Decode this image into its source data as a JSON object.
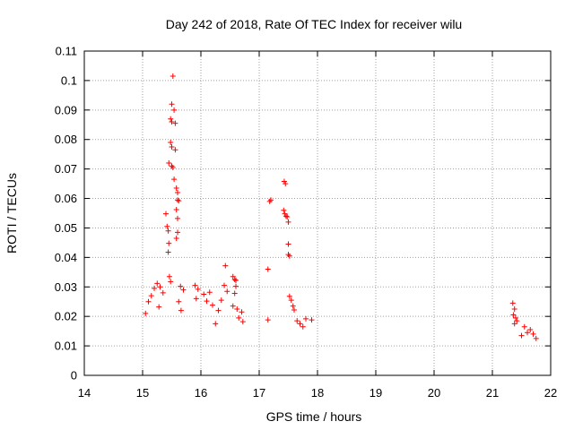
{
  "chart_data": {
    "type": "scatter",
    "title": "Day 242 of 2018, Rate Of TEC Index for receiver wilu",
    "xlabel": "GPS time / hours",
    "ylabel": "ROTI / TECUs",
    "xlim": [
      14,
      22
    ],
    "ylim": [
      0,
      0.11
    ],
    "grid": true,
    "marker": "+",
    "color": "#ff0000",
    "x_ticks": [
      {
        "value": 14,
        "label": "14"
      },
      {
        "value": 15,
        "label": "15"
      },
      {
        "value": 16,
        "label": "16"
      },
      {
        "value": 17,
        "label": "17"
      },
      {
        "value": 18,
        "label": "18"
      },
      {
        "value": 19,
        "label": "19"
      },
      {
        "value": 20,
        "label": "20"
      },
      {
        "value": 21,
        "label": "21"
      },
      {
        "value": 22,
        "label": "22"
      }
    ],
    "y_ticks": [
      {
        "value": 0,
        "label": "0"
      },
      {
        "value": 0.01,
        "label": "0.01"
      },
      {
        "value": 0.02,
        "label": "0.02"
      },
      {
        "value": 0.03,
        "label": "0.03"
      },
      {
        "value": 0.04,
        "label": "0.04"
      },
      {
        "value": 0.05,
        "label": "0.05"
      },
      {
        "value": 0.06,
        "label": "0.06"
      },
      {
        "value": 0.07,
        "label": "0.07"
      },
      {
        "value": 0.08,
        "label": "0.08"
      },
      {
        "value": 0.09,
        "label": "0.09"
      },
      {
        "value": 0.1,
        "label": "0.1"
      },
      {
        "value": 0.11,
        "label": "0.11"
      }
    ],
    "series": [
      {
        "name": "ROTI",
        "points": [
          [
            15.52,
            0.1015
          ],
          [
            15.5,
            0.092
          ],
          [
            15.54,
            0.09
          ],
          [
            15.48,
            0.087
          ],
          [
            15.5,
            0.086
          ],
          [
            15.56,
            0.0855
          ],
          [
            15.48,
            0.079
          ],
          [
            15.5,
            0.0775
          ],
          [
            15.56,
            0.0765
          ],
          [
            15.45,
            0.072
          ],
          [
            15.5,
            0.071
          ],
          [
            15.52,
            0.0705
          ],
          [
            15.54,
            0.0665
          ],
          [
            15.58,
            0.0635
          ],
          [
            15.6,
            0.062
          ],
          [
            15.6,
            0.0595
          ],
          [
            15.62,
            0.0592
          ],
          [
            15.4,
            0.0548
          ],
          [
            15.58,
            0.0562
          ],
          [
            15.6,
            0.0532
          ],
          [
            15.42,
            0.0505
          ],
          [
            15.44,
            0.049
          ],
          [
            15.6,
            0.0485
          ],
          [
            15.58,
            0.0465
          ],
          [
            15.45,
            0.0448
          ],
          [
            15.44,
            0.0418
          ],
          [
            15.46,
            0.0335
          ],
          [
            15.48,
            0.0318
          ],
          [
            17.2,
            0.0595
          ],
          [
            17.18,
            0.059
          ],
          [
            17.43,
            0.0658
          ],
          [
            17.45,
            0.065
          ],
          [
            17.42,
            0.056
          ],
          [
            17.44,
            0.0548
          ],
          [
            17.46,
            0.054
          ],
          [
            17.48,
            0.0538
          ],
          [
            17.5,
            0.052
          ],
          [
            17.5,
            0.0445
          ],
          [
            17.5,
            0.041
          ],
          [
            17.52,
            0.0405
          ],
          [
            17.15,
            0.036
          ],
          [
            17.52,
            0.0268
          ],
          [
            17.55,
            0.0255
          ],
          [
            17.58,
            0.0235
          ],
          [
            17.6,
            0.0222
          ],
          [
            16.42,
            0.0372
          ],
          [
            16.55,
            0.0335
          ],
          [
            16.58,
            0.0325
          ],
          [
            16.6,
            0.0322
          ],
          [
            16.6,
            0.0302
          ],
          [
            16.58,
            0.0278
          ],
          [
            15.25,
            0.0312
          ],
          [
            15.3,
            0.03
          ],
          [
            15.2,
            0.0295
          ],
          [
            15.35,
            0.028
          ],
          [
            15.15,
            0.027
          ],
          [
            15.1,
            0.025
          ],
          [
            15.28,
            0.0232
          ],
          [
            15.05,
            0.021
          ],
          [
            15.65,
            0.0302
          ],
          [
            15.7,
            0.029
          ],
          [
            15.62,
            0.025
          ],
          [
            15.66,
            0.022
          ],
          [
            15.9,
            0.0305
          ],
          [
            15.95,
            0.0292
          ],
          [
            16.05,
            0.0275
          ],
          [
            15.92,
            0.026
          ],
          [
            16.1,
            0.0252
          ],
          [
            16.2,
            0.0238
          ],
          [
            16.15,
            0.0282
          ],
          [
            16.35,
            0.0255
          ],
          [
            16.3,
            0.022
          ],
          [
            16.4,
            0.0305
          ],
          [
            16.45,
            0.0285
          ],
          [
            16.25,
            0.0175
          ],
          [
            16.55,
            0.0235
          ],
          [
            16.62,
            0.0225
          ],
          [
            16.7,
            0.0215
          ],
          [
            16.65,
            0.0195
          ],
          [
            16.72,
            0.0182
          ],
          [
            17.15,
            0.0188
          ],
          [
            17.65,
            0.0185
          ],
          [
            17.7,
            0.0175
          ],
          [
            17.8,
            0.0192
          ],
          [
            17.9,
            0.0188
          ],
          [
            17.75,
            0.0165
          ],
          [
            21.35,
            0.0245
          ],
          [
            21.38,
            0.0225
          ],
          [
            21.36,
            0.0205
          ],
          [
            21.4,
            0.0195
          ],
          [
            21.42,
            0.0185
          ],
          [
            21.38,
            0.0175
          ],
          [
            21.5,
            0.0135
          ],
          [
            21.6,
            0.0145
          ],
          [
            21.65,
            0.0155
          ],
          [
            21.7,
            0.014
          ],
          [
            21.75,
            0.0125
          ],
          [
            21.55,
            0.0165
          ]
        ]
      }
    ]
  }
}
